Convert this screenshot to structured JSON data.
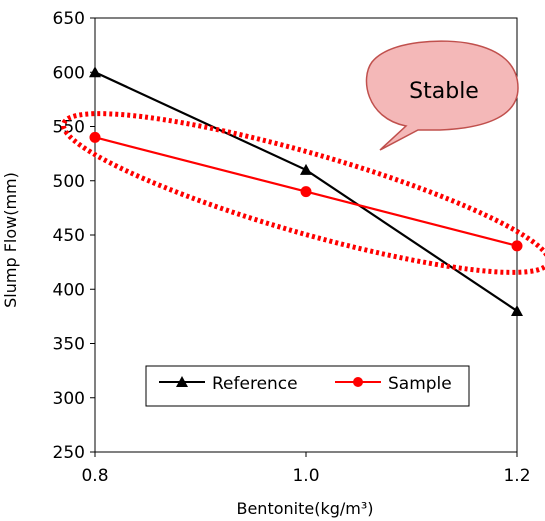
{
  "chart_data": {
    "type": "line",
    "xlabel": "Bentonite(kg/m³)",
    "ylabel": "Slump Flow(mm)",
    "xlim": [
      0.8,
      1.2
    ],
    "ylim": [
      250,
      650
    ],
    "x_ticks": [
      "0.8",
      "1.0",
      "1.2"
    ],
    "x_tick_values": [
      0.8,
      1.0,
      1.2
    ],
    "y_ticks": [
      "250",
      "300",
      "350",
      "400",
      "450",
      "500",
      "550",
      "600",
      "650"
    ],
    "y_tick_values": [
      250,
      300,
      350,
      400,
      450,
      500,
      550,
      600,
      650
    ],
    "grid": false,
    "legend_position": "bottom-center",
    "series": [
      {
        "name": "Reference",
        "color": "#000000",
        "marker": "triangle",
        "x": [
          0.8,
          1.0,
          1.2
        ],
        "values": [
          600,
          510,
          380
        ]
      },
      {
        "name": "Sample",
        "color": "#ff0000",
        "marker": "circle",
        "x": [
          0.8,
          1.0,
          1.2
        ],
        "values": [
          540,
          490,
          440
        ]
      }
    ],
    "annotations": [
      {
        "text": "Stable",
        "style": "speech-bubble",
        "fill": "#f4b8b8"
      }
    ],
    "highlight": {
      "shape": "dotted-ellipse",
      "color": "#ff0000",
      "series": "Sample"
    }
  }
}
